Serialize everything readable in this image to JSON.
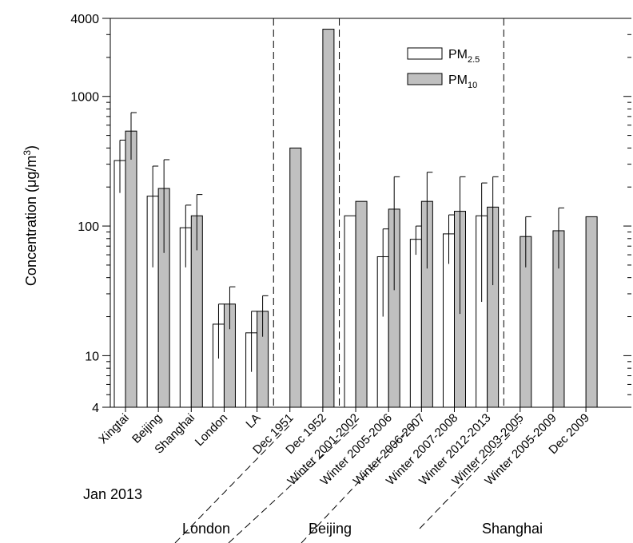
{
  "chart_data": {
    "type": "bar",
    "y_axis": {
      "label": "Concentration (μg/m",
      "label_sup": "3",
      "label_close": ")",
      "scale": "log",
      "ylim": [
        4,
        4000
      ],
      "major_ticks": [
        4,
        10,
        100,
        1000,
        4000
      ],
      "tick_labels": [
        "4",
        "10",
        "100",
        "1000",
        "4000"
      ]
    },
    "categories": [
      "Xingtai",
      "Beijing",
      "Shanghai",
      "London",
      "LA",
      "Dec 1951",
      "Dec 1952",
      "Winter 2001-2002",
      "Winter 2005-2006",
      "Winter 2006-2007",
      "Winter 2007-2008",
      "Winter 2012-2013",
      "Winter 2003-2005",
      "Winter 2005-2009",
      "Dec 2009"
    ],
    "legend": [
      {
        "name": "PM",
        "sub": "2.5",
        "color": "#ffffff"
      },
      {
        "name": "PM",
        "sub": "10",
        "color": "#c0c0c0"
      }
    ],
    "series": [
      {
        "name": "PM2.5",
        "color": "#ffffff",
        "values": [
          320,
          170,
          97,
          17.5,
          15,
          null,
          null,
          120,
          58,
          79,
          87,
          120,
          null,
          null,
          null
        ],
        "error_high": [
          460,
          290,
          145,
          25,
          22,
          null,
          null,
          null,
          95,
          100,
          122,
          215,
          null,
          null,
          null
        ],
        "error_low": [
          180,
          48,
          48,
          9.5,
          7.5,
          null,
          null,
          null,
          20,
          60,
          51,
          26,
          null,
          null,
          null
        ]
      },
      {
        "name": "PM10",
        "color": "#c0c0c0",
        "values": [
          540,
          195,
          120,
          25,
          22,
          400,
          3300,
          155,
          135,
          155,
          130,
          140,
          83,
          92,
          118
        ],
        "error_high": [
          750,
          325,
          175,
          34,
          29,
          null,
          null,
          null,
          240,
          260,
          240,
          240,
          118,
          138,
          null
        ],
        "error_low": [
          325,
          62,
          65,
          16,
          14,
          null,
          null,
          null,
          32,
          47,
          21,
          35,
          48,
          47,
          null
        ]
      }
    ],
    "groups": [
      {
        "label": "Jan 2013"
      },
      {
        "label": "London"
      },
      {
        "label": "Beijing"
      },
      {
        "label": "Shanghai"
      }
    ]
  }
}
